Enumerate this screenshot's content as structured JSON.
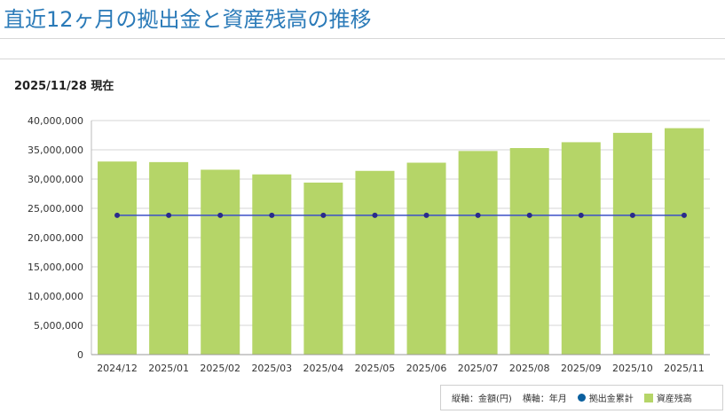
{
  "page": {
    "title": "直近12ヶ月の拠出金と資産残高の推移",
    "as_of": "2025/11/28 現在"
  },
  "legend": {
    "axis_note_y": "縦軸：金額(円)",
    "axis_note_x": "横軸：年月",
    "series_line": "拠出金累計",
    "series_bar": "資産残高"
  },
  "colors": {
    "bar": "#b5d568",
    "line": "#3b4fc7",
    "marker": "#2a2a8c",
    "legend_dot": "#0a5f9e",
    "title": "#2a7ab8"
  },
  "chart_data": {
    "type": "bar",
    "categories": [
      "2024/12",
      "2025/01",
      "2025/02",
      "2025/03",
      "2025/04",
      "2025/05",
      "2025/06",
      "2025/07",
      "2025/08",
      "2025/09",
      "2025/10",
      "2025/11"
    ],
    "y_ticks": [
      "0",
      "5,000,000",
      "10,000,000",
      "15,000,000",
      "20,000,000",
      "25,000,000",
      "30,000,000",
      "35,000,000",
      "40,000,000"
    ],
    "ylim": [
      0,
      40000000
    ],
    "grid": true,
    "legend_position": "bottom-right",
    "series": [
      {
        "name": "資産残高",
        "type": "bar",
        "values": [
          33000000,
          32900000,
          31600000,
          30800000,
          29400000,
          31400000,
          32800000,
          34800000,
          35300000,
          36300000,
          37900000,
          38700000
        ]
      },
      {
        "name": "拠出金累計",
        "type": "line",
        "values": [
          23800000,
          23800000,
          23800000,
          23800000,
          23800000,
          23800000,
          23800000,
          23800000,
          23800000,
          23800000,
          23800000,
          23800000
        ]
      }
    ]
  }
}
